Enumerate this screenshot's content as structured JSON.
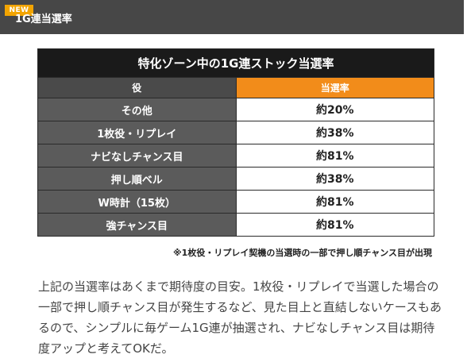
{
  "header": {
    "badge": "NEW",
    "title": "1G連当選率"
  },
  "table": {
    "caption": "特化ゾーン中の1G連ストック当選率",
    "headers": [
      "役",
      "当選率"
    ],
    "rows": [
      {
        "label": "その他",
        "value": "約20%"
      },
      {
        "label": "1枚役・リプレイ",
        "value": "約38%"
      },
      {
        "label": "ナビなしチャンス目",
        "value": "約81%"
      },
      {
        "label": "押し順ベル",
        "value": "約38%"
      },
      {
        "label": "W時計（15枚）",
        "value": "約81%"
      },
      {
        "label": "強チャンス目",
        "value": "約81%"
      }
    ]
  },
  "note": "※1枚役・リプレイ契機の当選時の一部で押し順チャンス目が出現",
  "body_text": "上記の当選率はあくまで期待度の目安。1枚役・リプレイで当選した場合の一部で押し順チャンス目が発生するなど、見た目上と直結しないケースもあるので、シンプルに毎ゲーム1G連が抽選され、ナビなしチャンス目は期待度アップと考えてOKだ。",
  "colors": {
    "header_bg": "#474747",
    "badge": "#f2a400",
    "rate_header": "#f28c1a",
    "label_bg": "#5b5b5b"
  }
}
